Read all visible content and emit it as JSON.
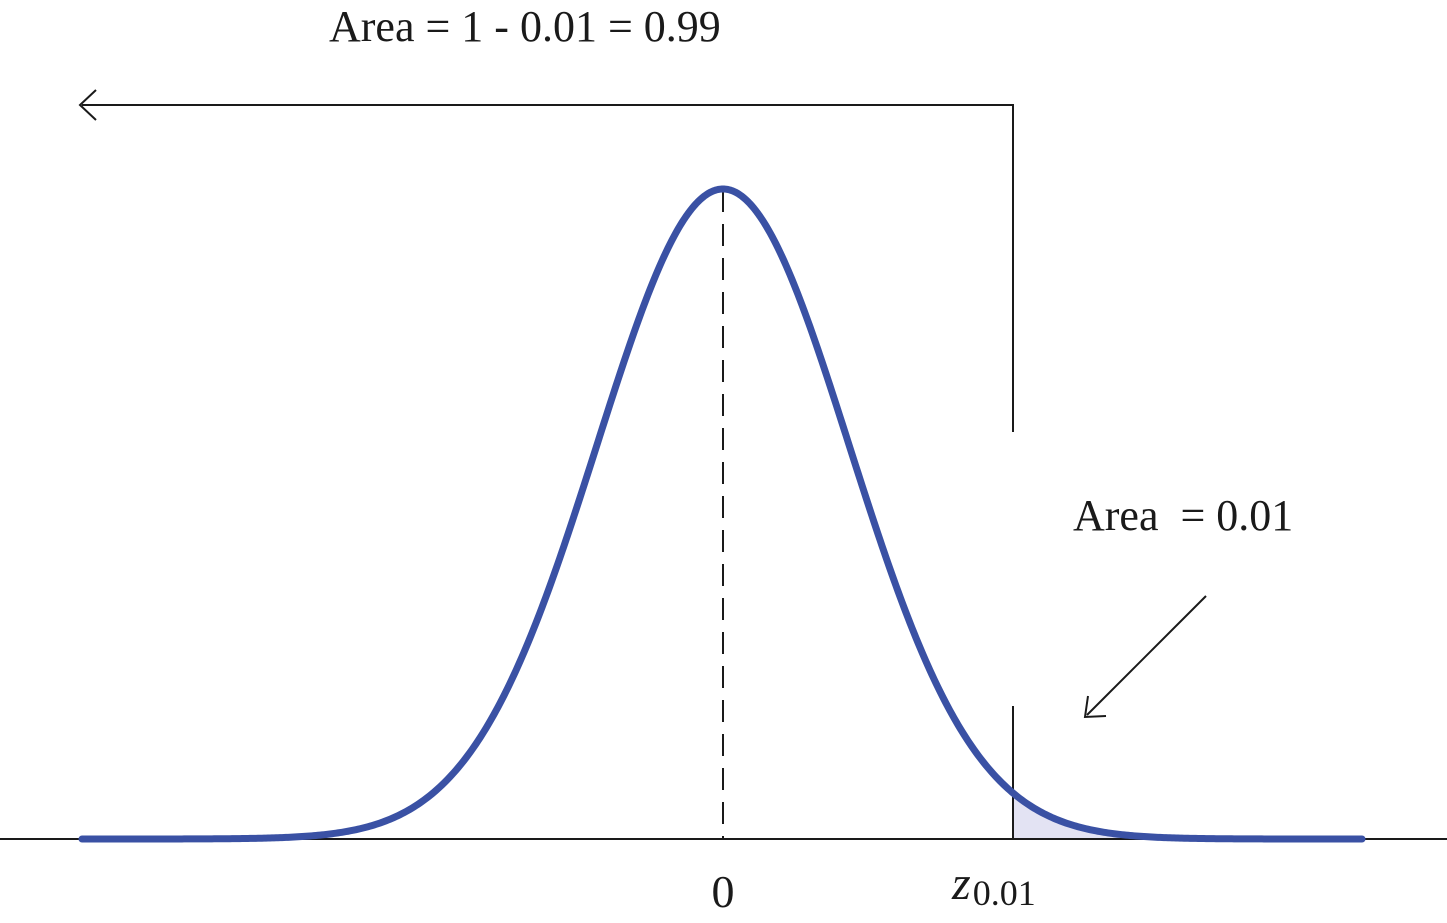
{
  "diagram": {
    "upper_area_label": "Area = 1 - 0.01 = 0.99",
    "tail_area_label": "Area  = 0.01",
    "mean_tick_label": "0",
    "critical_value": {
      "symbol": "z",
      "subscript": "0.01"
    },
    "tail_probability": 0.01
  },
  "colors": {
    "curve": "#3a51a4",
    "tail_fill": "#e3e3f3",
    "lines": "#1a1a1a",
    "background": "#ffffff"
  }
}
